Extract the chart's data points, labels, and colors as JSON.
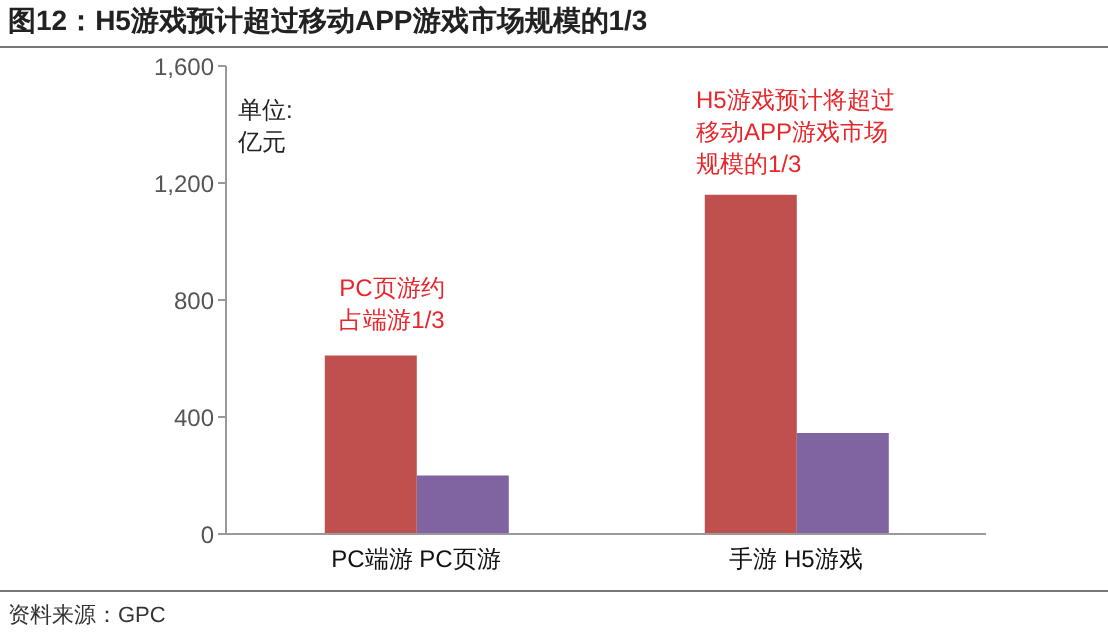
{
  "chart_data": {
    "type": "bar",
    "title": "图12：H5游戏预计超过移动APP游戏市场规模的1/3",
    "ylabel": "单位:亿元",
    "categories": [
      "PC端游 PC页游",
      "手游 H5游戏"
    ],
    "series": [
      {
        "color": "#c0504d",
        "values": [
          610,
          1160
        ]
      },
      {
        "color": "#8064a2",
        "values": [
          200,
          345
        ]
      }
    ],
    "ylim": [
      0,
      1600
    ],
    "yticks": [
      0,
      400,
      800,
      {
        "value": 1200,
        "label": "1,200"
      },
      {
        "value": 1600,
        "label": "1,600"
      }
    ],
    "annotations": [
      "PC页游约占端游1/3",
      "H5游戏预计将超过移动APP游戏市场规模的1/3",
      "资料来源：GPC"
    ]
  }
}
